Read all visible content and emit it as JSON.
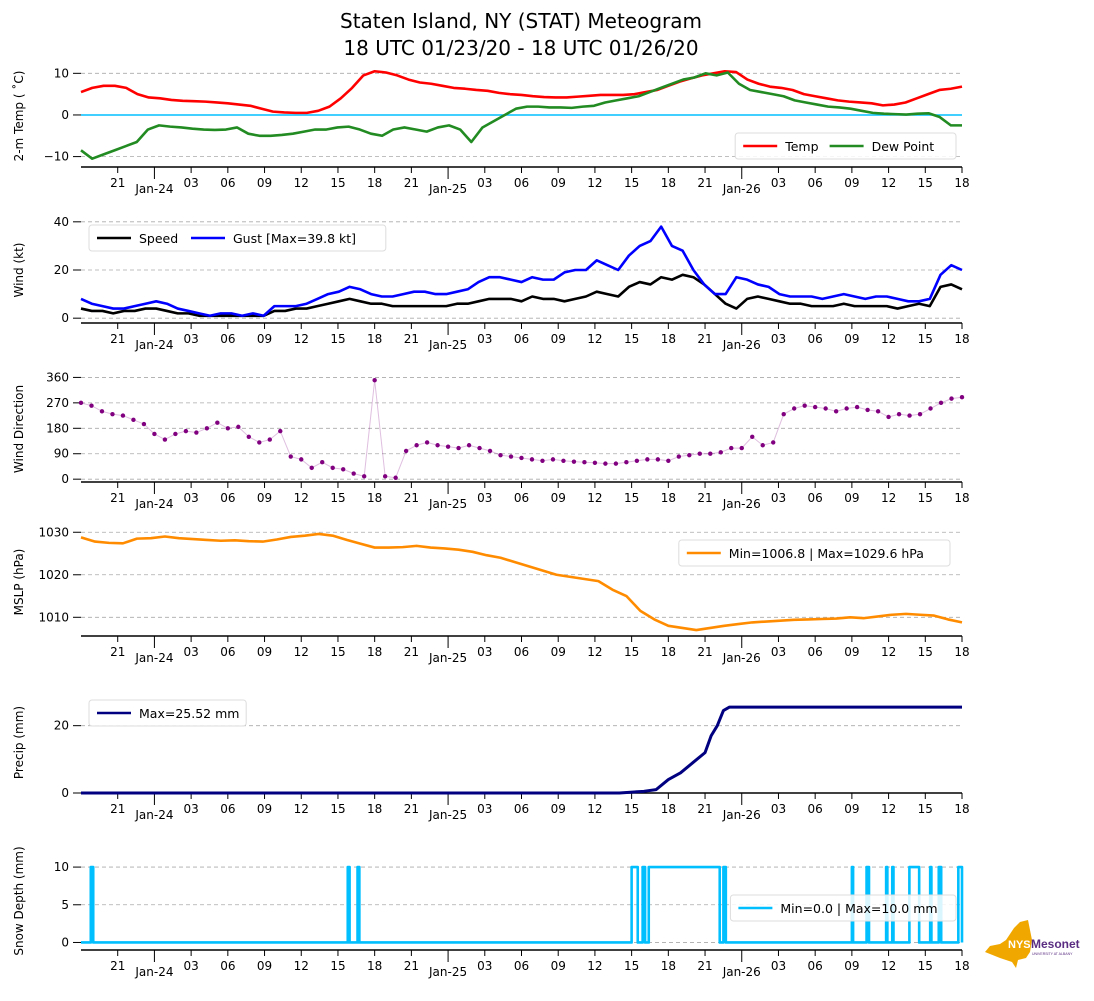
{
  "chart_data": [
    {
      "id": "temp",
      "type": "line",
      "title": "Staten Island, NY (STAT) Meteogram",
      "subtitle": "18 UTC 01/23/20 - 18 UTC 01/26/20",
      "ylabel": "2-m Temp ( $^\\circ$C)",
      "ylabel_display": "2-m Temp ( ˚C)",
      "ylim": [
        -12.5,
        12
      ],
      "yticks": [
        -10,
        0,
        10
      ],
      "grid": true,
      "legend": "bottom-right",
      "reference_line": {
        "y": 0,
        "color": "#00bfff"
      },
      "series": [
        {
          "name": "Temp",
          "color": "#ff0000",
          "values": [
            5.5,
            6.5,
            7.0,
            7.0,
            6.5,
            5.0,
            4.2,
            4.0,
            3.6,
            3.4,
            3.3,
            3.2,
            3.0,
            2.8,
            2.5,
            2.2,
            1.5,
            0.8,
            0.6,
            0.5,
            0.5,
            1.0,
            2.0,
            4.0,
            6.5,
            9.5,
            10.5,
            10.2,
            9.5,
            8.5,
            7.8,
            7.5,
            7.0,
            6.5,
            6.3,
            6.0,
            5.8,
            5.3,
            5.0,
            4.8,
            4.5,
            4.3,
            4.2,
            4.2,
            4.4,
            4.6,
            4.8,
            4.8,
            4.8,
            5.0,
            5.5,
            6.0,
            7.0,
            8.0,
            8.8,
            9.5,
            10.0,
            10.5,
            10.3,
            8.5,
            7.5,
            6.8,
            6.5,
            6.0,
            5.0,
            4.5,
            4.0,
            3.5,
            3.2,
            3.0,
            2.8,
            2.3,
            2.5,
            3.0,
            4.0,
            5.0,
            6.0,
            6.3,
            6.8
          ]
        },
        {
          "name": "Dew Point",
          "color": "#228b22",
          "values": [
            -8.5,
            -10.5,
            -9.5,
            -8.5,
            -7.5,
            -6.5,
            -3.5,
            -2.5,
            -2.8,
            -3.0,
            -3.3,
            -3.5,
            -3.6,
            -3.5,
            -3.0,
            -4.5,
            -5.0,
            -5.0,
            -4.8,
            -4.5,
            -4.0,
            -3.5,
            -3.5,
            -3.0,
            -2.8,
            -3.5,
            -4.5,
            -5.0,
            -3.5,
            -3.0,
            -3.5,
            -4.0,
            -3.0,
            -2.5,
            -3.5,
            -6.5,
            -3.0,
            -1.5,
            0.0,
            1.5,
            2.0,
            2.0,
            1.8,
            1.8,
            1.7,
            2.0,
            2.2,
            3.0,
            3.5,
            4.0,
            4.5,
            5.5,
            6.5,
            7.5,
            8.5,
            9.0,
            10.0,
            9.5,
            10.2,
            7.5,
            6.0,
            5.5,
            5.0,
            4.5,
            3.5,
            3.0,
            2.5,
            2.0,
            1.8,
            1.5,
            1.0,
            0.5,
            0.3,
            0.2,
            0.1,
            0.3,
            0.4,
            -0.5,
            -2.5,
            -2.5
          ]
        }
      ],
      "xticks": [
        "21",
        "03",
        "06",
        "09",
        "12",
        "15",
        "18",
        "21",
        "03",
        "06",
        "09",
        "12",
        "15",
        "18",
        "21",
        "03",
        "06",
        "09",
        "12",
        "15",
        "18"
      ],
      "date_labels": [
        "Jan-24",
        "Jan-25",
        "Jan-26"
      ]
    },
    {
      "id": "wind",
      "type": "line",
      "ylabel": "Wind (kt)",
      "ylim": [
        -2,
        42
      ],
      "yticks": [
        0,
        20,
        40
      ],
      "grid": true,
      "legend": "top-left",
      "series": [
        {
          "name": "Speed",
          "color": "#000000",
          "values": [
            4,
            3,
            3,
            2,
            3,
            3,
            4,
            4,
            3,
            2,
            2,
            1,
            1,
            1,
            1,
            1,
            1,
            1,
            3,
            3,
            4,
            4,
            5,
            6,
            7,
            8,
            7,
            6,
            6,
            5,
            5,
            5,
            5,
            5,
            5,
            6,
            6,
            7,
            8,
            8,
            8,
            7,
            9,
            8,
            8,
            7,
            8,
            9,
            11,
            10,
            9,
            13,
            15,
            14,
            17,
            16,
            18,
            17,
            14,
            10,
            6,
            4,
            8,
            9,
            8,
            7,
            6,
            6,
            5,
            5,
            5,
            6,
            5,
            5,
            5,
            5,
            4,
            5,
            6,
            5,
            13,
            14,
            12
          ]
        },
        {
          "name": "Gust [Max=39.8 kt]",
          "color": "#0000ff",
          "max": 39.8,
          "values": [
            8,
            6,
            5,
            4,
            4,
            5,
            6,
            7,
            6,
            4,
            3,
            2,
            1,
            2,
            2,
            1,
            2,
            1,
            5,
            5,
            5,
            6,
            8,
            10,
            11,
            13,
            12,
            10,
            9,
            9,
            10,
            11,
            11,
            10,
            10,
            11,
            12,
            15,
            17,
            17,
            16,
            15,
            17,
            16,
            16,
            19,
            20,
            20,
            24,
            22,
            20,
            26,
            30,
            32,
            38,
            30,
            28,
            20,
            14,
            10,
            10,
            17,
            16,
            14,
            13,
            10,
            9,
            9,
            9,
            8,
            9,
            10,
            9,
            8,
            9,
            9,
            8,
            7,
            7,
            8,
            18,
            22,
            20
          ]
        }
      ],
      "xticks": [
        "21",
        "03",
        "06",
        "09",
        "12",
        "15",
        "18",
        "21",
        "03",
        "06",
        "09",
        "12",
        "15",
        "18",
        "21",
        "03",
        "06",
        "09",
        "12",
        "15",
        "18"
      ],
      "date_labels": [
        "Jan-24",
        "Jan-25",
        "Jan-26"
      ]
    },
    {
      "id": "wdir",
      "type": "scatter",
      "ylabel": "Wind Direction",
      "ylim": [
        -10,
        365
      ],
      "yticks": [
        0,
        90,
        180,
        270,
        360
      ],
      "grid": true,
      "series": [
        {
          "name": "Wind Direction",
          "color": "#800080",
          "values": [
            270,
            260,
            240,
            230,
            225,
            210,
            195,
            160,
            140,
            160,
            170,
            165,
            180,
            200,
            180,
            185,
            150,
            130,
            140,
            170,
            80,
            70,
            40,
            60,
            40,
            35,
            20,
            10,
            350,
            10,
            5,
            100,
            120,
            130,
            120,
            115,
            110,
            120,
            110,
            100,
            85,
            80,
            75,
            70,
            65,
            70,
            65,
            62,
            60,
            58,
            55,
            55,
            60,
            65,
            70,
            70,
            65,
            80,
            85,
            90,
            90,
            95,
            110,
            110,
            150,
            120,
            130,
            230,
            250,
            260,
            255,
            250,
            240,
            250,
            255,
            245,
            240,
            220,
            230,
            225,
            230,
            250,
            270,
            285,
            290
          ]
        }
      ],
      "xticks": [
        "21",
        "03",
        "06",
        "09",
        "12",
        "15",
        "18",
        "21",
        "03",
        "06",
        "09",
        "12",
        "15",
        "18",
        "21",
        "03",
        "06",
        "09",
        "12",
        "15",
        "18"
      ],
      "date_labels": [
        "Jan-24",
        "Jan-25",
        "Jan-26"
      ]
    },
    {
      "id": "mslp",
      "type": "line",
      "ylabel": "MSLP (hPa)",
      "ylim": [
        1005.6,
        1031
      ],
      "yticks": [
        1010,
        1020,
        1030
      ],
      "grid": true,
      "legend": "top-right",
      "series": [
        {
          "name": "Min=1006.8 | Max=1029.6 hPa",
          "color": "#ff8c00",
          "min": 1006.8,
          "max": 1029.6,
          "values": [
            1028.8,
            1027.8,
            1027.5,
            1027.4,
            1028.5,
            1028.6,
            1029.0,
            1028.6,
            1028.4,
            1028.2,
            1028.0,
            1028.1,
            1027.9,
            1027.8,
            1028.3,
            1028.9,
            1029.2,
            1029.6,
            1029.2,
            1028.2,
            1027.3,
            1026.4,
            1026.4,
            1026.5,
            1026.8,
            1026.4,
            1026.2,
            1025.9,
            1025.4,
            1024.6,
            1024.0,
            1023.0,
            1022.0,
            1021.0,
            1020.0,
            1019.5,
            1019.0,
            1018.5,
            1016.5,
            1015.0,
            1011.5,
            1009.5,
            1008.0,
            1007.5,
            1007.0,
            1007.5,
            1008.0,
            1008.4,
            1008.8,
            1009.0,
            1009.2,
            1009.4,
            1009.5,
            1009.6,
            1009.7,
            1010.0,
            1009.8,
            1010.2,
            1010.6,
            1010.8,
            1010.6,
            1010.4,
            1009.5,
            1008.8
          ]
        }
      ],
      "xticks": [
        "21",
        "03",
        "06",
        "09",
        "12",
        "15",
        "18",
        "21",
        "03",
        "06",
        "09",
        "12",
        "15",
        "18",
        "21",
        "03",
        "06",
        "09",
        "12",
        "15",
        "18"
      ],
      "date_labels": [
        "Jan-24",
        "Jan-25",
        "Jan-26"
      ]
    },
    {
      "id": "precip",
      "type": "line",
      "ylabel": "Precip (mm)",
      "ylim": [
        0,
        30
      ],
      "yticks": [
        0,
        20
      ],
      "grid": true,
      "legend": "top-left",
      "series": [
        {
          "name": "Max=25.52 mm",
          "color": "#000080",
          "max": 25.52,
          "points": [
            [
              0,
              0
            ],
            [
              44,
              0
            ],
            [
              46,
              0.5
            ],
            [
              47,
              1.0
            ],
            [
              48,
              4.0
            ],
            [
              49,
              6.0
            ],
            [
              50,
              9.0
            ],
            [
              51,
              12.0
            ],
            [
              51.5,
              17.0
            ],
            [
              52,
              20.0
            ],
            [
              52.5,
              24.5
            ],
            [
              53,
              25.52
            ],
            [
              72,
              25.52
            ]
          ]
        }
      ],
      "xticks": [
        "21",
        "03",
        "06",
        "09",
        "12",
        "15",
        "18",
        "21",
        "03",
        "06",
        "09",
        "12",
        "15",
        "18",
        "21",
        "03",
        "06",
        "09",
        "12",
        "15",
        "18"
      ],
      "date_labels": [
        "Jan-24",
        "Jan-25",
        "Jan-26"
      ]
    },
    {
      "id": "snow",
      "type": "line",
      "ylabel": "Snow Depth (mm)",
      "ylim": [
        -1,
        12
      ],
      "yticks": [
        0,
        5,
        10
      ],
      "grid": true,
      "legend": "center-right",
      "series": [
        {
          "name": "Min=0.0 | Max=10.0 mm",
          "color": "#00bfff",
          "min": 0.0,
          "max": 10.0,
          "on_intervals": [
            [
              0.8,
              1.0
            ],
            [
              21.8,
              21.95
            ],
            [
              22.6,
              22.75
            ],
            [
              45.0,
              45.5
            ],
            [
              45.9,
              46.1
            ],
            [
              46.4,
              52.2
            ],
            [
              52.5,
              52.7
            ],
            [
              63.0,
              63.1
            ],
            [
              64.2,
              64.4
            ],
            [
              65.8,
              65.9
            ],
            [
              66.3,
              66.4
            ],
            [
              67.7,
              68.5
            ],
            [
              69.4,
              69.5
            ],
            [
              70.1,
              70.3
            ],
            [
              71.7,
              72
            ]
          ]
        }
      ],
      "xticks": [
        "21",
        "03",
        "06",
        "09",
        "12",
        "15",
        "18",
        "21",
        "03",
        "06",
        "09",
        "12",
        "15",
        "18",
        "21",
        "03",
        "06",
        "09",
        "12",
        "15",
        "18"
      ],
      "date_labels": [
        "Jan-24",
        "Jan-25",
        "Jan-26"
      ]
    }
  ],
  "time_axis": {
    "start": "18 UTC 01/23/20",
    "end": "18 UTC 01/26/20",
    "hours": 72
  },
  "logo": {
    "nys": "NYS",
    "mesonet": "Mesonet",
    "sub": "UNIVERSITY AT ALBANY",
    "gold": "#f0a800",
    "purple": "#5a2d82"
  }
}
